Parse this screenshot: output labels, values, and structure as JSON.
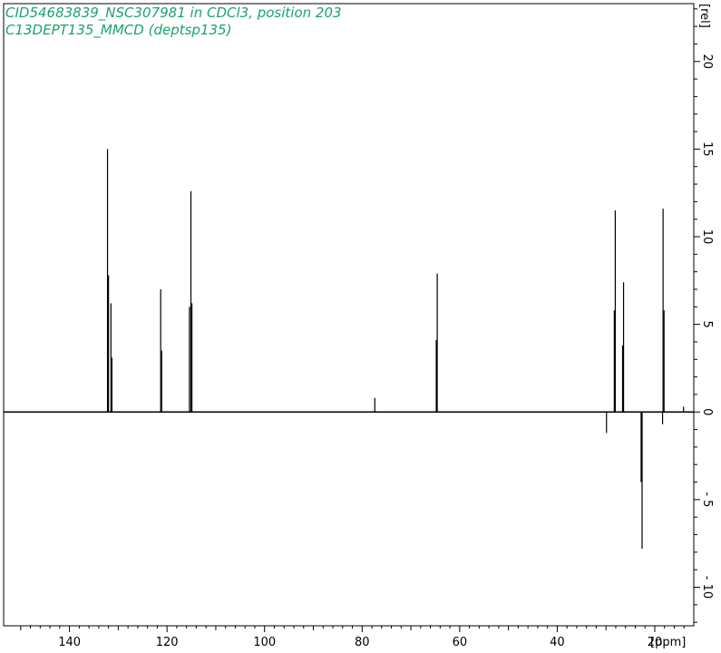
{
  "header": {
    "title_line1": "CID54683839_NSC307981 in CDCl3, position 203",
    "title_line2": "C13DEPT135_MMCD (deptsp135)",
    "title_color": "#1aa36b"
  },
  "chart_data": {
    "type": "line",
    "spectrum": "13C DEPT-135 NMR",
    "xlabel": "[ppm]",
    "ylabel": "[rel]",
    "xlim": [
      153.5,
      12.0
    ],
    "ylim": [
      -12.2,
      23.3
    ],
    "x_ticks": [
      140,
      120,
      100,
      80,
      60,
      40,
      20
    ],
    "y_ticks": [
      20,
      15,
      10,
      5,
      0,
      -5,
      -10
    ],
    "grid": false,
    "peaks": [
      {
        "ppm": 132.2,
        "intensity": 15.0
      },
      {
        "ppm": 132.0,
        "intensity": 7.8
      },
      {
        "ppm": 131.5,
        "intensity": 6.2
      },
      {
        "ppm": 131.3,
        "intensity": 3.1
      },
      {
        "ppm": 121.3,
        "intensity": 7.0
      },
      {
        "ppm": 121.1,
        "intensity": 3.5
      },
      {
        "ppm": 115.4,
        "intensity": 6.0
      },
      {
        "ppm": 115.1,
        "intensity": 12.6
      },
      {
        "ppm": 114.9,
        "intensity": 6.2
      },
      {
        "ppm": 77.4,
        "intensity": 0.8
      },
      {
        "ppm": 64.6,
        "intensity": 7.9
      },
      {
        "ppm": 64.8,
        "intensity": 4.1
      },
      {
        "ppm": 29.9,
        "intensity": -1.2
      },
      {
        "ppm": 28.1,
        "intensity": 11.5
      },
      {
        "ppm": 28.3,
        "intensity": 5.8
      },
      {
        "ppm": 26.4,
        "intensity": 7.4
      },
      {
        "ppm": 26.6,
        "intensity": 3.8
      },
      {
        "ppm": 22.6,
        "intensity": -7.8
      },
      {
        "ppm": 22.8,
        "intensity": -4.0
      },
      {
        "ppm": 18.3,
        "intensity": 11.6
      },
      {
        "ppm": 18.1,
        "intensity": 5.8
      },
      {
        "ppm": 18.4,
        "intensity": -0.7
      },
      {
        "ppm": 14.1,
        "intensity": 0.3
      }
    ]
  }
}
